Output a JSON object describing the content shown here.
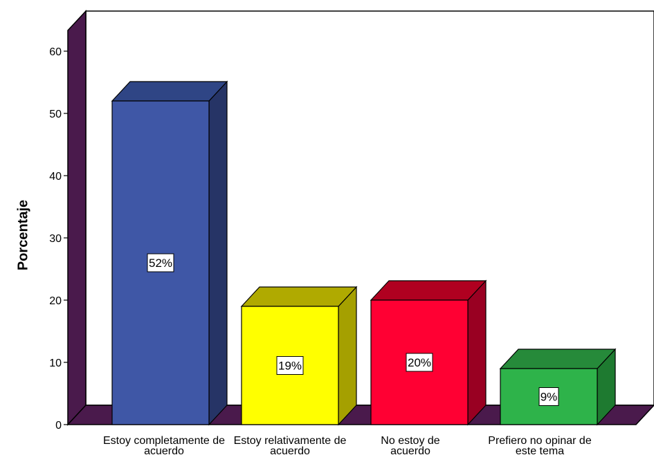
{
  "chart_data": {
    "type": "bar",
    "ylabel": "Porcentaje",
    "xlabel": "",
    "ylim": [
      0,
      60
    ],
    "yticks": [
      "0",
      "10",
      "20",
      "30",
      "40",
      "50",
      "60"
    ],
    "categories": [
      "Estoy completamente de acuerdo",
      "Estoy relativamente de acuerdo",
      "No estoy de acuerdo",
      "Prefiero no opinar de este tema"
    ],
    "values": [
      52,
      19,
      20,
      9
    ],
    "data_labels": [
      "52%",
      "19%",
      "20%",
      "9%"
    ],
    "colors": {
      "bars": [
        "#3F57A6",
        "#FFFF00",
        "#FF0033",
        "#2EB34A"
      ],
      "bar_sides": [
        "#263466",
        "#A5A000",
        "#990022",
        "#1E7A30"
      ],
      "bar_tops": [
        "#2F4585",
        "#B0AA00",
        "#B00020",
        "#268A3A"
      ],
      "wall": "#4A1A4C",
      "floor": "#4A1A4C"
    },
    "grid": false,
    "legend": "none"
  }
}
